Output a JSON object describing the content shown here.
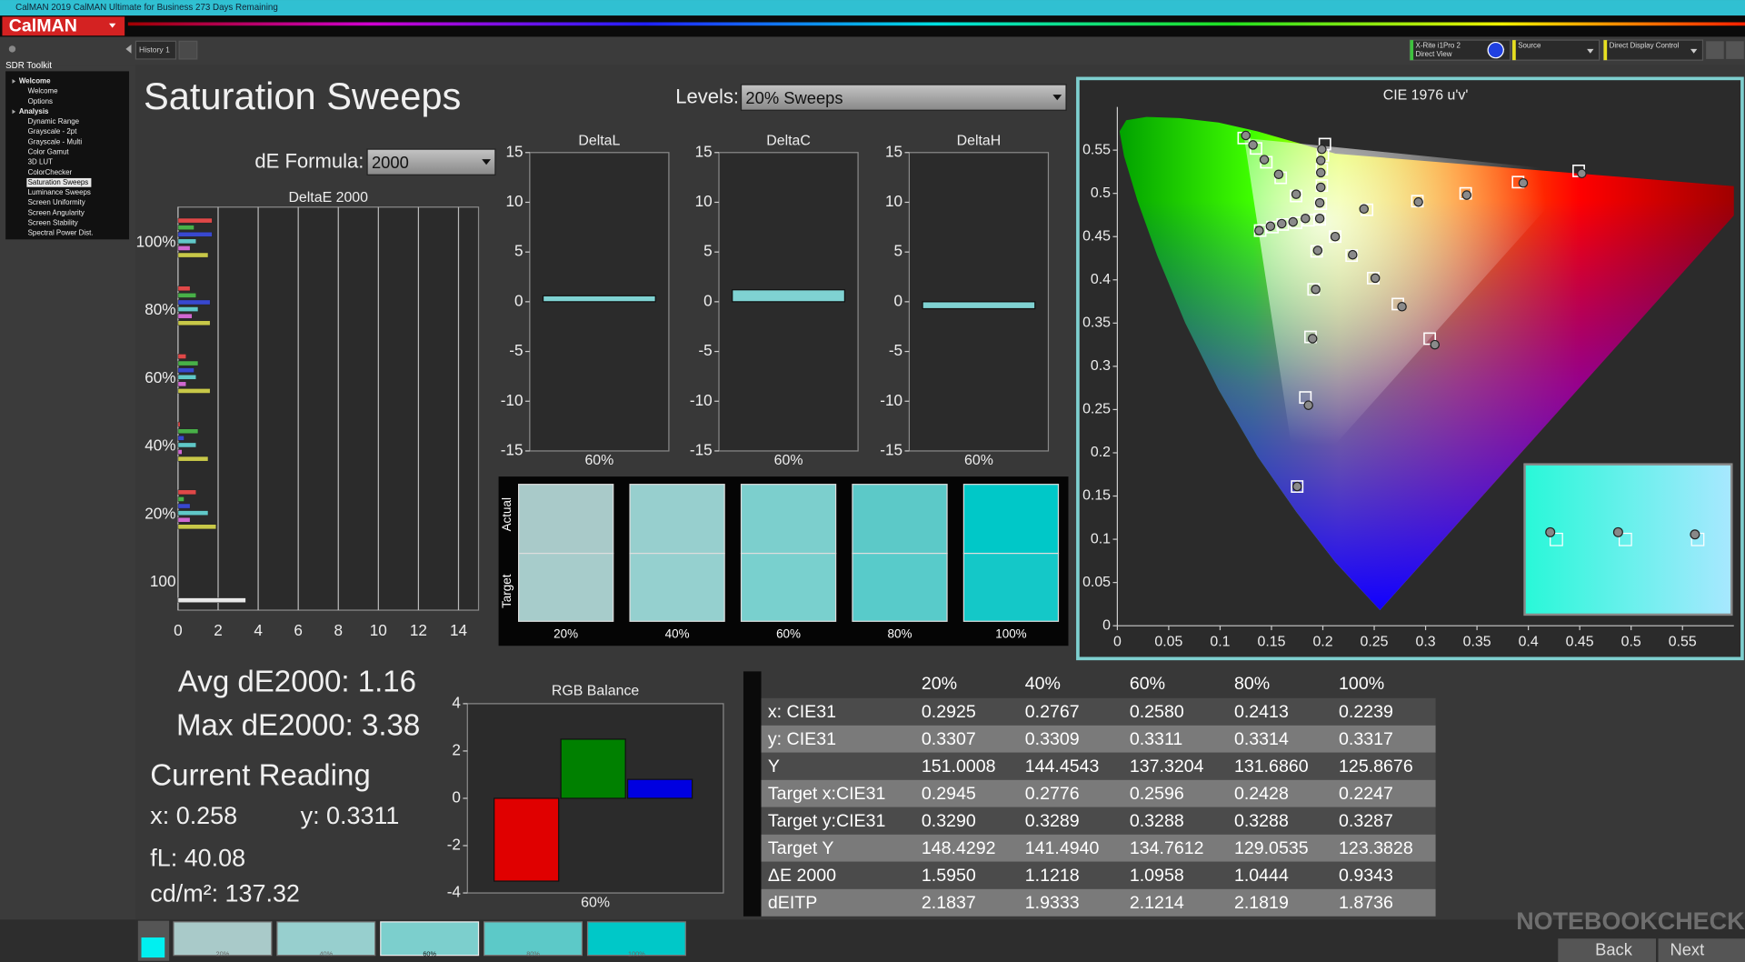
{
  "window": {
    "title": "CalMAN 2019 CalMAN Ultimate for Business 273 Days Remaining",
    "logo": "CalMAN",
    "tab": "History 1"
  },
  "devices": [
    {
      "lines": [
        "X-Rite i1Pro 2",
        "Direct View"
      ],
      "color": "#3ec23e"
    },
    {
      "lines": [
        "Source"
      ],
      "color": "#e8e020"
    },
    {
      "lines": [
        "Direct Display Control"
      ],
      "color": "#e8e020"
    }
  ],
  "sidebar": {
    "title": "SDR Toolkit",
    "items": [
      {
        "text": "Welcome",
        "level": 0
      },
      {
        "text": "Welcome",
        "level": 1
      },
      {
        "text": "Options",
        "level": 1
      },
      {
        "text": "Analysis",
        "level": 0
      },
      {
        "text": "Dynamic Range",
        "level": 1
      },
      {
        "text": "Grayscale - 2pt",
        "level": 1
      },
      {
        "text": "Grayscale - Multi",
        "level": 1
      },
      {
        "text": "Color Gamut",
        "level": 1
      },
      {
        "text": "3D LUT",
        "level": 1
      },
      {
        "text": "ColorChecker",
        "level": 1
      },
      {
        "text": "Saturation Sweeps",
        "level": 1,
        "selected": true
      },
      {
        "text": "Luminance Sweeps",
        "level": 1
      },
      {
        "text": "Screen Uniformity",
        "level": 1
      },
      {
        "text": "Screen Angularity",
        "level": 1
      },
      {
        "text": "Screen Stability",
        "level": 1
      },
      {
        "text": "Spectral Power Dist.",
        "level": 1
      }
    ]
  },
  "page": {
    "title": "Saturation Sweeps",
    "levels_label": "Levels:",
    "levels_value": "20% Sweeps",
    "formula_label": "dE Formula:",
    "formula_value": "2000"
  },
  "swatches": {
    "actual_label": "Actual",
    "target_label": "Target",
    "items": [
      {
        "label": "20%",
        "actual": "#a9cac9",
        "target": "#a7cccb"
      },
      {
        "label": "40%",
        "actual": "#97cfce",
        "target": "#95d0cf"
      },
      {
        "label": "60%",
        "actual": "#7ccfcd",
        "target": "#79d0ce"
      },
      {
        "label": "80%",
        "actual": "#5cc9c8",
        "target": "#58cbca"
      },
      {
        "label": "100%",
        "actual": "#00c8c8",
        "target": "#14c8c8"
      }
    ]
  },
  "stats": {
    "avg": "Avg dE2000: 1.16",
    "max": "Max dE2000: 3.38",
    "reading_title": "Current Reading",
    "x": "x: 0.258",
    "y": "y: 0.3311",
    "fl": "fL: 40.08",
    "cdm2": "cd/m²: 137.32"
  },
  "table": {
    "columns": [
      "20%",
      "40%",
      "60%",
      "80%",
      "100%"
    ],
    "rows": [
      {
        "label": "x: CIE31",
        "cells": [
          "0.2925",
          "0.2767",
          "0.2580",
          "0.2413",
          "0.2239"
        ]
      },
      {
        "label": "y: CIE31",
        "cells": [
          "0.3307",
          "0.3309",
          "0.3311",
          "0.3314",
          "0.3317"
        ]
      },
      {
        "label": "Y",
        "cells": [
          "151.0008",
          "144.4543",
          "137.3204",
          "131.6860",
          "125.8676"
        ]
      },
      {
        "label": "Target x:CIE31",
        "cells": [
          "0.2945",
          "0.2776",
          "0.2596",
          "0.2428",
          "0.2247"
        ]
      },
      {
        "label": "Target y:CIE31",
        "cells": [
          "0.3290",
          "0.3289",
          "0.3288",
          "0.3288",
          "0.3287"
        ]
      },
      {
        "label": "Target Y",
        "cells": [
          "148.4292",
          "141.4940",
          "134.7612",
          "129.0535",
          "123.3828"
        ]
      },
      {
        "label": "ΔE 2000",
        "cells": [
          "1.5950",
          "1.1218",
          "1.0958",
          "1.0444",
          "0.9343"
        ]
      },
      {
        "label": "dEITP",
        "cells": [
          "2.1837",
          "1.9333",
          "2.1214",
          "2.1819",
          "1.8736"
        ]
      }
    ]
  },
  "footer": {
    "swatches": [
      "20%",
      "40%",
      "60%",
      "80%",
      "100%"
    ],
    "back": "Back",
    "next": "Next"
  },
  "watermark": "NOTEBOOKCHECK",
  "chart_data": [
    {
      "type": "bar",
      "orientation": "horizontal",
      "title": "DeltaE 2000",
      "categories": [
        "100%",
        "80%",
        "60%",
        "40%",
        "20%",
        "100"
      ],
      "series": [
        {
          "color": "#e04848",
          "values": [
            1.7,
            0.6,
            0.4,
            0.1,
            0.9,
            null
          ]
        },
        {
          "color": "#48b048",
          "values": [
            0.8,
            0.9,
            1.0,
            1.0,
            0.3,
            null
          ]
        },
        {
          "color": "#3848d0",
          "values": [
            1.7,
            1.6,
            0.8,
            0.3,
            0.6,
            null
          ]
        },
        {
          "color": "#60c8c8",
          "values": [
            0.9,
            1.0,
            0.9,
            0.9,
            1.5,
            null
          ]
        },
        {
          "color": "#d068d0",
          "values": [
            0.6,
            0.7,
            0.4,
            0.2,
            0.6,
            null
          ]
        },
        {
          "color": "#c8c848",
          "values": [
            1.5,
            1.6,
            1.6,
            1.5,
            1.9,
            null
          ]
        },
        {
          "color": "#e8e8e8",
          "values": [
            null,
            null,
            null,
            null,
            null,
            3.38
          ]
        }
      ],
      "xlim": [
        0,
        15
      ],
      "xticks": [
        0,
        2,
        4,
        6,
        8,
        10,
        12,
        14
      ],
      "grid": true
    },
    {
      "type": "bar",
      "title": "DeltaL",
      "categories": [
        "60%"
      ],
      "series": [
        {
          "color": "#7fd2d2",
          "values": [
            0.6
          ]
        }
      ],
      "ylim": [
        -15,
        15
      ],
      "yticks": [
        15,
        10,
        5,
        0,
        -5,
        -10,
        -15
      ]
    },
    {
      "type": "bar",
      "title": "DeltaC",
      "categories": [
        "60%"
      ],
      "series": [
        {
          "color": "#7fd2d2",
          "values": [
            1.2
          ]
        }
      ],
      "ylim": [
        -15,
        15
      ],
      "yticks": [
        15,
        10,
        5,
        0,
        -5,
        -10,
        -15
      ]
    },
    {
      "type": "bar",
      "title": "DeltaH",
      "categories": [
        "60%"
      ],
      "series": [
        {
          "color": "#7fd2d2",
          "values": [
            -0.7
          ]
        }
      ],
      "ylim": [
        -15,
        15
      ],
      "yticks": [
        15,
        10,
        5,
        0,
        -5,
        -10,
        -15
      ]
    },
    {
      "type": "bar",
      "title": "RGB Balance",
      "categories": [
        "60%"
      ],
      "series": [
        {
          "color": "#e00000",
          "values": [
            -3.5
          ]
        },
        {
          "color": "#008000",
          "values": [
            2.5
          ]
        },
        {
          "color": "#0000e0",
          "values": [
            0.8
          ]
        }
      ],
      "ylim": [
        -4,
        4
      ],
      "yticks": [
        4,
        2,
        0,
        -2,
        -4
      ]
    },
    {
      "type": "scatter",
      "title": "CIE 1976 u'v'",
      "series": [
        {
          "marker": "square",
          "color": "#ffffff",
          "u": [
            0.123,
            0.135,
            0.145,
            0.159,
            0.174,
            0.202,
            0.2,
            0.199,
            0.199,
            0.198,
            0.449,
            0.39,
            0.339,
            0.292,
            0.243,
            0.139,
            0.151,
            0.161,
            0.174,
            0.186,
            0.304,
            0.273,
            0.249,
            0.228,
            0.212,
            0.175,
            0.183,
            0.188,
            0.191,
            0.194,
            0.197
          ],
          "v": [
            0.564,
            0.552,
            0.536,
            0.518,
            0.497,
            0.557,
            0.544,
            0.528,
            0.509,
            0.488,
            0.526,
            0.513,
            0.5,
            0.491,
            0.481,
            0.457,
            0.461,
            0.464,
            0.466,
            0.469,
            0.332,
            0.372,
            0.402,
            0.428,
            0.45,
            0.161,
            0.264,
            0.334,
            0.389,
            0.433,
            0.47
          ]
        },
        {
          "marker": "circle",
          "color": "#8a8a8a",
          "u": [
            0.125,
            0.132,
            0.143,
            0.157,
            0.174,
            0.199,
            0.198,
            0.198,
            0.198,
            0.197,
            0.452,
            0.395,
            0.34,
            0.293,
            0.24,
            0.138,
            0.149,
            0.16,
            0.171,
            0.183,
            0.309,
            0.277,
            0.251,
            0.229,
            0.212,
            0.175,
            0.186,
            0.19,
            0.193,
            0.195,
            0.197
          ],
          "v": [
            0.567,
            0.556,
            0.539,
            0.522,
            0.499,
            0.551,
            0.538,
            0.524,
            0.507,
            0.489,
            0.523,
            0.512,
            0.498,
            0.49,
            0.482,
            0.457,
            0.462,
            0.465,
            0.467,
            0.471,
            0.325,
            0.369,
            0.402,
            0.429,
            0.45,
            0.161,
            0.255,
            0.332,
            0.389,
            0.434,
            0.471
          ]
        }
      ],
      "xlim": [
        0,
        0.6
      ],
      "ylim": [
        0,
        0.6
      ],
      "xticks": [
        0,
        0.05,
        0.1,
        0.15,
        0.2,
        0.25,
        0.3,
        0.35,
        0.4,
        0.45,
        0.5,
        0.55
      ],
      "yticks": [
        0,
        0.05,
        0.1,
        0.15,
        0.2,
        0.25,
        0.3,
        0.35,
        0.4,
        0.45,
        0.5,
        0.55
      ]
    }
  ]
}
